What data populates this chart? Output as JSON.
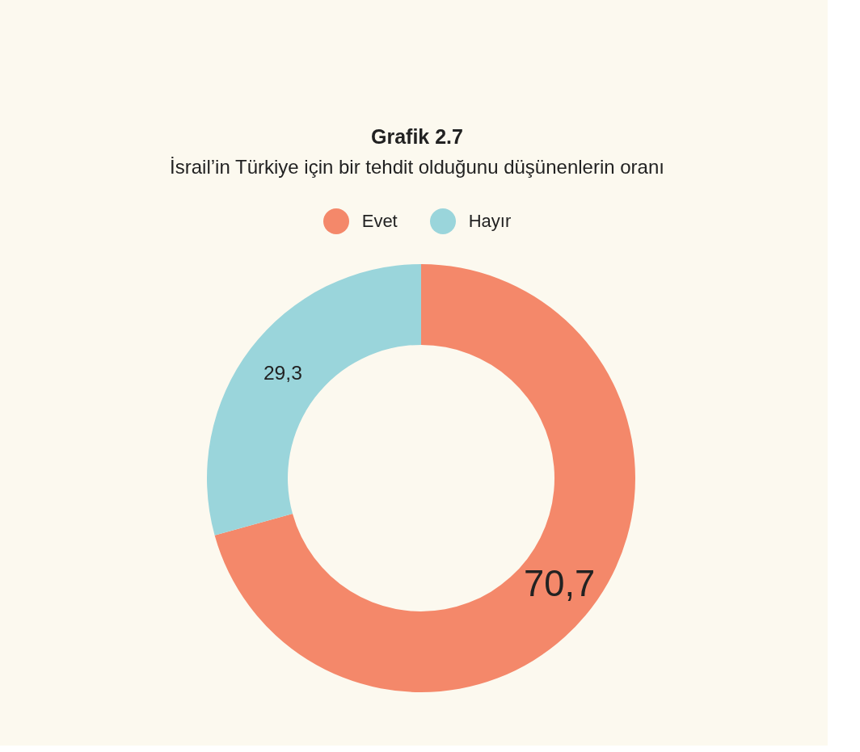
{
  "chart_data": {
    "type": "donut",
    "title": "Grafik 2.7",
    "subtitle": "İsrail’in Türkiye için bir tehdit olduğunu düşünenlerin oranı",
    "categories": [
      "Evet",
      "Hayır"
    ],
    "values": [
      70.7,
      29.3
    ],
    "colors": [
      "#f4886a",
      "#9ad5db"
    ],
    "value_labels": [
      "70,7",
      "29,3"
    ],
    "legend": "top"
  }
}
